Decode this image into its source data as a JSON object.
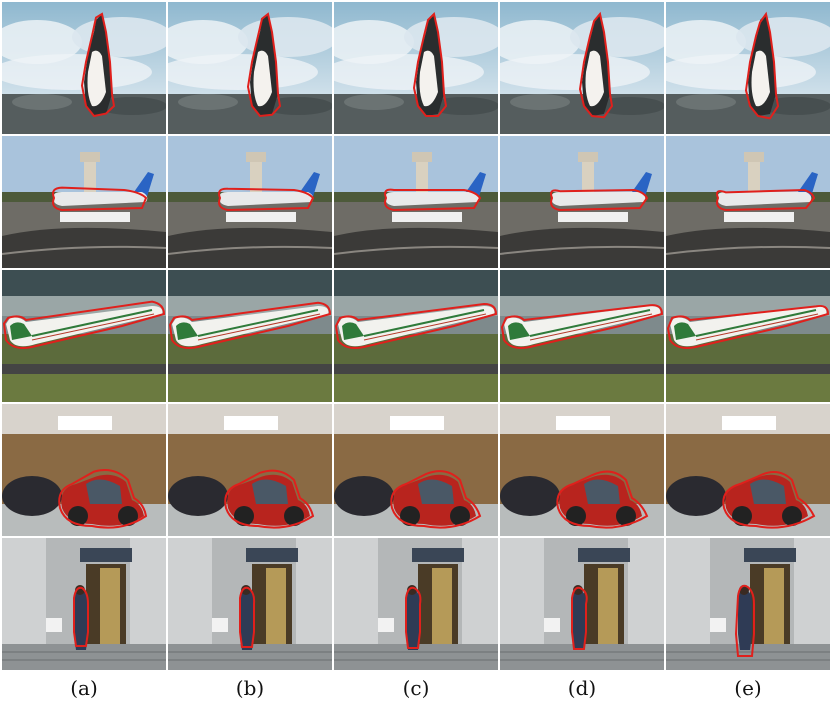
{
  "figure": {
    "captions": [
      "(a)",
      "(b)",
      "(c)",
      "(d)",
      "(e)"
    ],
    "rows": [
      "penguin-on-rocks",
      "airport-plane-with-tower",
      "airliner-taking-off",
      "red-scooter-by-stone-wall",
      "person-at-building-entrance"
    ],
    "contour_color": "#e0201c"
  }
}
